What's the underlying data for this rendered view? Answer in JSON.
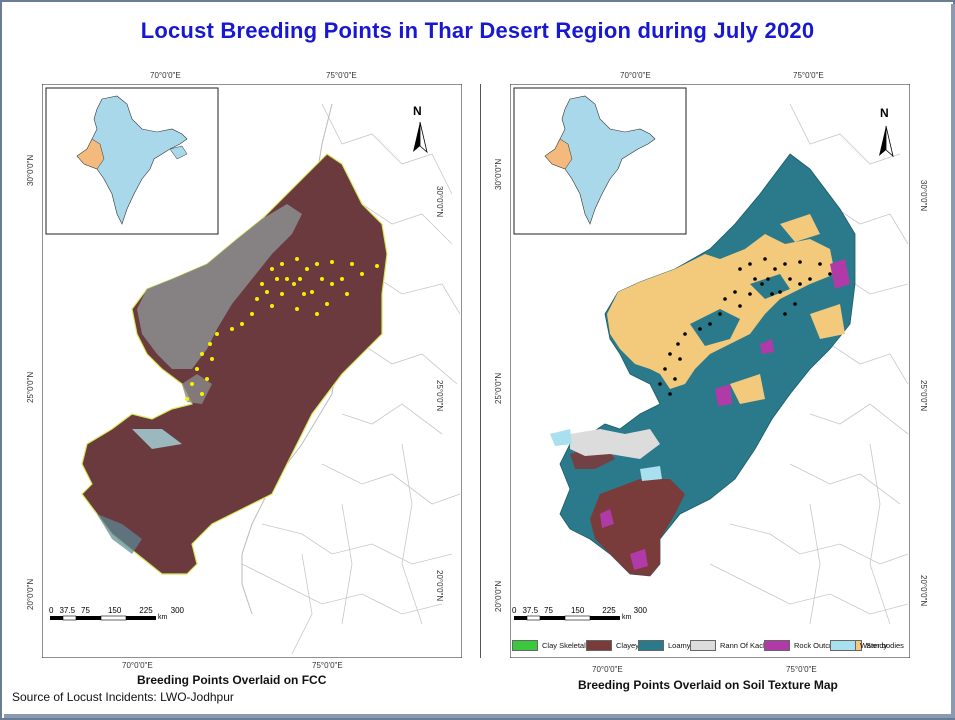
{
  "title": "Locust Breeding Points in Thar Desert Region during July 2020",
  "source": "Source of Locust Incidents: LWO-Jodhpur",
  "left_map": {
    "caption": "Breeding Points Overlaid on FCC",
    "lon_labels_top": [
      "70°0'0\"E",
      "75°0'0\"E"
    ],
    "lon_labels_bottom": [
      "70°0'0\"E",
      "75°0'0\"E"
    ],
    "lat_labels": [
      "30°0'0\"N",
      "25°0'0\"N",
      "20°0'0\"N"
    ],
    "north": "N",
    "scale_labels": [
      "0",
      "37.5",
      "75",
      "150",
      "225",
      "300"
    ],
    "scale_unit": "km",
    "colors": {
      "fcc_dark": "#6b3a3e",
      "fcc_grey": "#8a8a8a",
      "points": "#f2f200"
    }
  },
  "right_map": {
    "caption": "Breeding Points Overlaid on Soil Texture Map",
    "lon_labels_top": [
      "70°0'0\"E",
      "75°0'0\"E"
    ],
    "lon_labels_bottom": [
      "70°0'0\"E",
      "75°0'0\"E"
    ],
    "lat_labels": [
      "30°0'0\"N",
      "25°0'0\"N",
      "20°0'0\"N"
    ],
    "north": "N",
    "scale_labels": [
      "0",
      "37.5",
      "75",
      "150",
      "225",
      "300"
    ],
    "scale_unit": "km",
    "colors": {
      "points": "#000000"
    }
  },
  "legend": [
    {
      "label": "Clay Skeletal",
      "color": "#3cc83c"
    },
    {
      "label": "Clayey",
      "color": "#7a3b3b"
    },
    {
      "label": "Loamy",
      "color": "#2a7a8c"
    },
    {
      "label": "Rann Of Kach",
      "color": "#dcdcdc"
    },
    {
      "label": "Rock Outcrop",
      "color": "#b03aa8"
    },
    {
      "label": "Sandy",
      "color": "#f3c97c"
    },
    {
      "label": "Water bodies",
      "color": "#a8e0f0"
    }
  ]
}
